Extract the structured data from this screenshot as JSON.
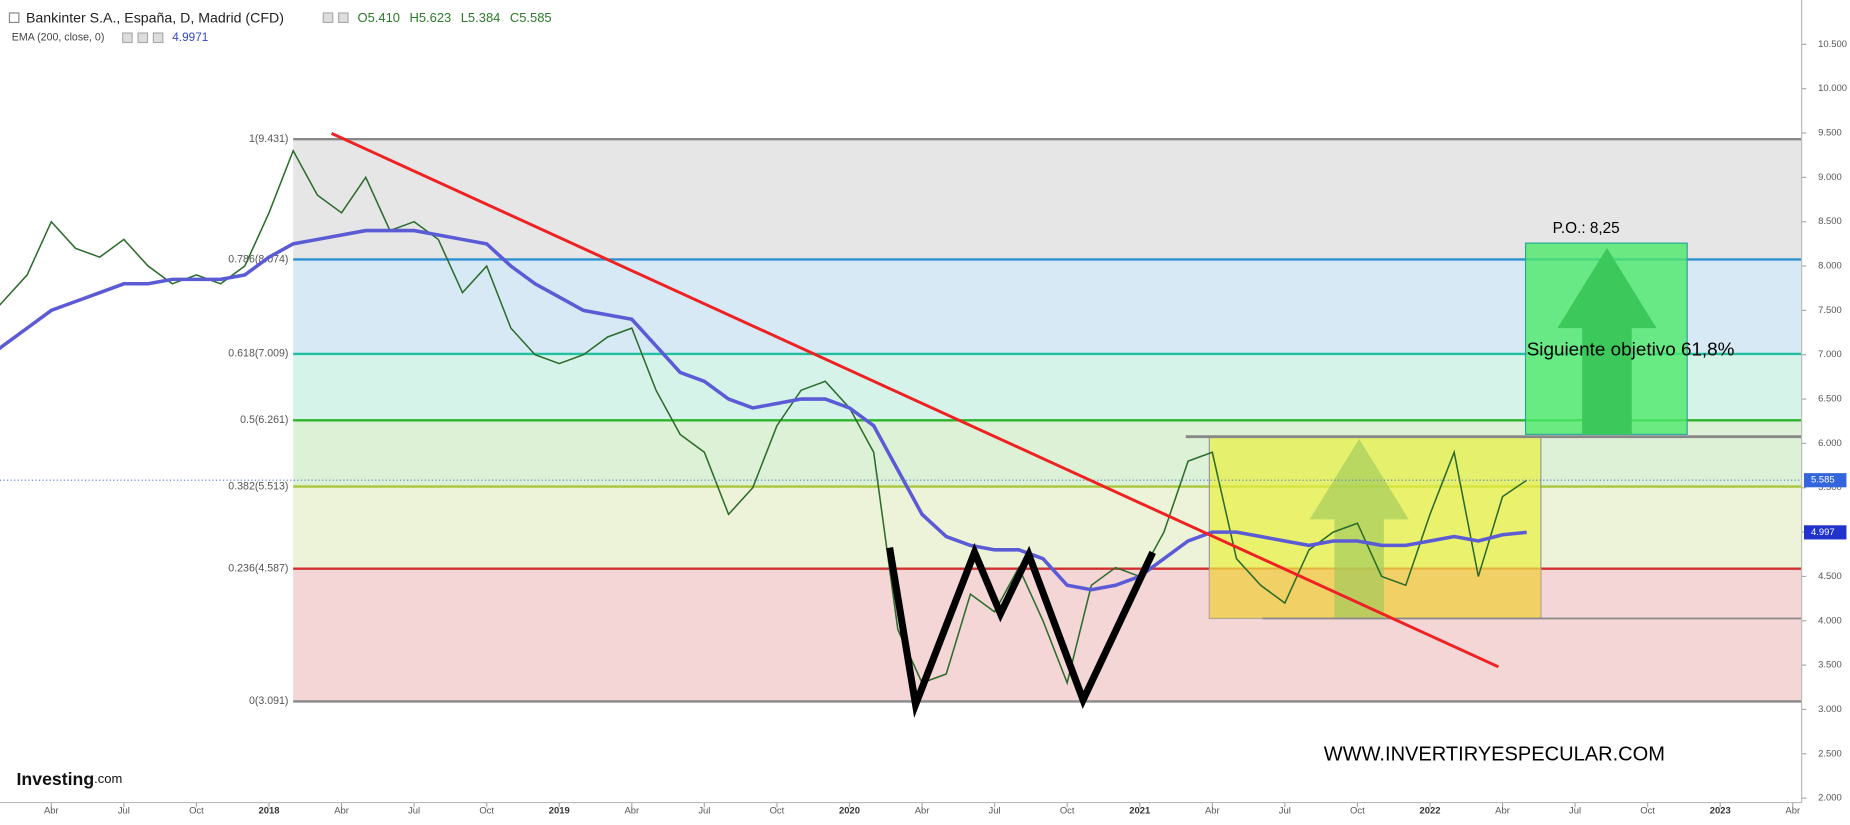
{
  "chart_data": {
    "type": "line",
    "ohlc": [
      "O5.410",
      "H5.623",
      "L5.384",
      "C5.585"
    ],
    "ema_value": 4.9971,
    "x": [
      "2017-01",
      "2017-02",
      "2017-03",
      "2017-04",
      "2017-05",
      "2017-06",
      "2017-07",
      "2017-08",
      "2017-09",
      "2017-10",
      "2017-11",
      "2017-12",
      "2018-01",
      "2018-02",
      "2018-03",
      "2018-04",
      "2018-05",
      "2018-06",
      "2018-07",
      "2018-08",
      "2018-09",
      "2018-10",
      "2018-11",
      "2018-12",
      "2019-01",
      "2019-02",
      "2019-03",
      "2019-04",
      "2019-05",
      "2019-06",
      "2019-07",
      "2019-08",
      "2019-09",
      "2019-10",
      "2019-11",
      "2019-12",
      "2020-01",
      "2020-02",
      "2020-03",
      "2020-04",
      "2020-05",
      "2020-06",
      "2020-07",
      "2020-08",
      "2020-09",
      "2020-10",
      "2020-11",
      "2020-12",
      "2021-01",
      "2021-02",
      "2021-03",
      "2021-04",
      "2021-05",
      "2021-06",
      "2021-07",
      "2021-08",
      "2021-09",
      "2021-10",
      "2021-11",
      "2021-12",
      "2022-01",
      "2022-02",
      "2022-03",
      "2022-04",
      "2022-05"
    ],
    "series": [
      {
        "name": "Bankinter S.A., España, D, Madrid (CFD)",
        "color": "#2b6b2b",
        "values": [
          7.3,
          7.6,
          7.9,
          8.5,
          8.2,
          8.1,
          8.3,
          8.0,
          7.8,
          7.9,
          7.8,
          8.0,
          8.6,
          9.3,
          8.8,
          8.6,
          9.0,
          8.4,
          8.5,
          8.3,
          7.7,
          8.0,
          7.3,
          7.0,
          6.9,
          7.0,
          7.2,
          7.3,
          6.6,
          6.1,
          5.9,
          5.2,
          5.5,
          6.2,
          6.6,
          6.7,
          6.4,
          5.9,
          3.9,
          3.3,
          3.4,
          4.3,
          4.1,
          4.6,
          4.0,
          3.3,
          4.4,
          4.6,
          4.5,
          5.0,
          5.8,
          5.9,
          4.7,
          4.4,
          4.2,
          4.8,
          5.0,
          5.1,
          4.5,
          4.4,
          5.2,
          5.9,
          4.5,
          5.4,
          5.585
        ]
      },
      {
        "name": "EMA (200, close, 0)",
        "color": "#5b5bd6",
        "values": [
          6.9,
          7.1,
          7.3,
          7.5,
          7.6,
          7.7,
          7.8,
          7.8,
          7.85,
          7.85,
          7.85,
          7.9,
          8.1,
          8.25,
          8.3,
          8.35,
          8.4,
          8.4,
          8.4,
          8.35,
          8.3,
          8.25,
          8.0,
          7.8,
          7.65,
          7.5,
          7.45,
          7.4,
          7.1,
          6.8,
          6.7,
          6.5,
          6.4,
          6.45,
          6.5,
          6.5,
          6.4,
          6.2,
          5.7,
          5.2,
          4.95,
          4.85,
          4.8,
          4.8,
          4.7,
          4.4,
          4.35,
          4.4,
          4.5,
          4.7,
          4.9,
          5.0,
          5.0,
          4.95,
          4.9,
          4.85,
          4.9,
          4.9,
          4.85,
          4.85,
          4.9,
          4.95,
          4.9,
          4.97,
          4.997
        ]
      }
    ],
    "last_price": 5.585,
    "last_ema": 4.997,
    "xlim": [
      "2017-01",
      "2023-04"
    ],
    "xticks": [
      {
        "value": "2017-04",
        "label": "Abr"
      },
      {
        "value": "2017-07",
        "label": "Jul"
      },
      {
        "value": "2017-10",
        "label": "Oct"
      },
      {
        "value": "2018-01",
        "label": "2018"
      },
      {
        "value": "2018-04",
        "label": "Abr"
      },
      {
        "value": "2018-07",
        "label": "Jul"
      },
      {
        "value": "2018-10",
        "label": "Oct"
      },
      {
        "value": "2019-01",
        "label": "2019"
      },
      {
        "value": "2019-04",
        "label": "Abr"
      },
      {
        "value": "2019-07",
        "label": "Jul"
      },
      {
        "value": "2019-10",
        "label": "Oct"
      },
      {
        "value": "2020-01",
        "label": "2020"
      },
      {
        "value": "2020-04",
        "label": "Abr"
      },
      {
        "value": "2020-07",
        "label": "Jul"
      },
      {
        "value": "2020-10",
        "label": "Oct"
      },
      {
        "value": "2021-01",
        "label": "2021"
      },
      {
        "value": "2021-04",
        "label": "Abr"
      },
      {
        "value": "2021-07",
        "label": "Jul"
      },
      {
        "value": "2021-10",
        "label": "Oct"
      },
      {
        "value": "2022-01",
        "label": "2022"
      },
      {
        "value": "2022-04",
        "label": "Abr"
      },
      {
        "value": "2022-07",
        "label": "Jul"
      },
      {
        "value": "2022-10",
        "label": "Oct"
      },
      {
        "value": "2023-01",
        "label": "2023"
      },
      {
        "value": "2023-04",
        "label": "Abr"
      }
    ],
    "ylim": [
      1.95,
      11.0
    ],
    "yticks": [
      {
        "value": 2,
        "label": "2.000"
      },
      {
        "value": 2.5,
        "label": "2.500"
      },
      {
        "value": 3,
        "label": "3.000"
      },
      {
        "value": 3.5,
        "label": "3.500"
      },
      {
        "value": 4,
        "label": "4.000"
      },
      {
        "value": 4.5,
        "label": "4.500"
      },
      {
        "value": 5,
        "label": "5.000"
      },
      {
        "value": 5.5,
        "label": "5.500"
      },
      {
        "value": 6,
        "label": "6.000"
      },
      {
        "value": 6.5,
        "label": "6.500"
      },
      {
        "value": 7,
        "label": "7.000"
      },
      {
        "value": 7.5,
        "label": "7.500"
      },
      {
        "value": 8,
        "label": "8.000"
      },
      {
        "value": 8.5,
        "label": "8.500"
      },
      {
        "value": 9,
        "label": "9.000"
      },
      {
        "value": 9.5,
        "label": "9.500"
      },
      {
        "value": 10,
        "label": "10.000"
      },
      {
        "value": 10.5,
        "label": "10.500"
      }
    ],
    "fib_start": "2018-02",
    "fib_levels": [
      {
        "label": "1(9.431)",
        "value": 9.431,
        "color": "#888888",
        "fill": "#e6e6e6"
      },
      {
        "label": "0.786(8.074)",
        "value": 8.074,
        "color": "#2f8fcf",
        "fill": "#d6e9f5"
      },
      {
        "label": "0.618(7.009)",
        "value": 7.009,
        "color": "#22bfa0",
        "fill": "#d6f3ea"
      },
      {
        "label": "0.5(6.261)",
        "value": 6.261,
        "color": "#2bb52b",
        "fill": "#dcf1d6"
      },
      {
        "label": "0.382(5.513)",
        "value": 5.513,
        "color": "#a8c83c",
        "fill": "#edf3d8"
      },
      {
        "label": "0.236(4.587)",
        "value": 4.587,
        "color": "#d03030",
        "fill": "#f5d6d6"
      },
      {
        "label": "0(3.091)",
        "value": 3.091,
        "color": "#888888",
        "fill": "none"
      }
    ],
    "target_label": "P.O.: 8,25",
    "next_target": "Siguiente objetivo 61,8%",
    "website": "WWW.INVERTIRYESPECULAR.COM",
    "logo": [
      "Investing",
      ".com"
    ]
  }
}
